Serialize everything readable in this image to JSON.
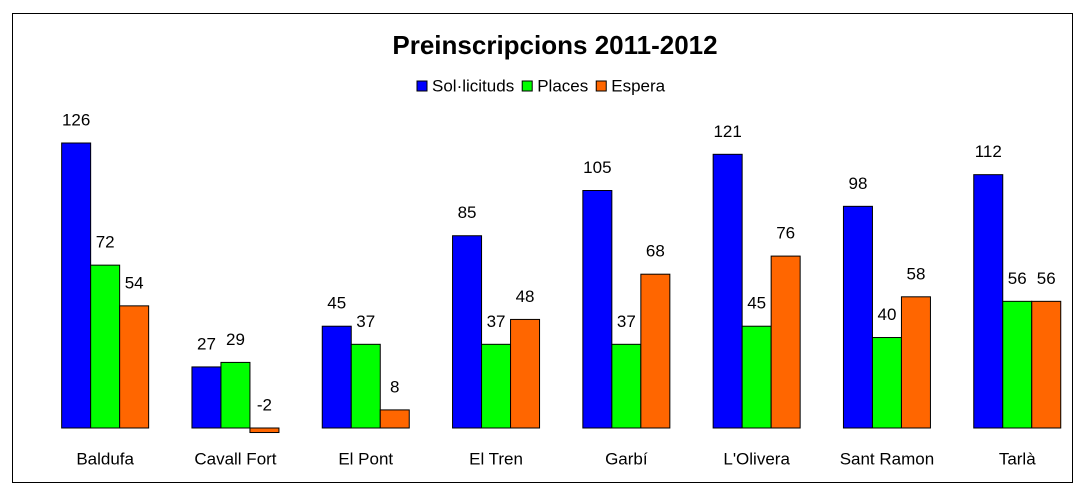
{
  "chart_data": {
    "type": "bar",
    "title": "Preinscripcions 2011-2012",
    "categories": [
      "Baldufa",
      "Cavall Fort",
      "El Pont",
      "El Tren",
      "Garbí",
      "L'Olivera",
      "Sant Ramon",
      "Tarlà"
    ],
    "series": [
      {
        "name": "Sol·licituds",
        "color": "#0000ff",
        "values": [
          126,
          27,
          45,
          85,
          105,
          121,
          98,
          112
        ]
      },
      {
        "name": "Places",
        "color": "#00ff00",
        "values": [
          72,
          29,
          37,
          37,
          37,
          45,
          40,
          56
        ]
      },
      {
        "name": "Espera",
        "color": "#ff6600",
        "values": [
          54,
          -2,
          8,
          48,
          68,
          76,
          58,
          56
        ]
      }
    ],
    "legend": "top"
  }
}
